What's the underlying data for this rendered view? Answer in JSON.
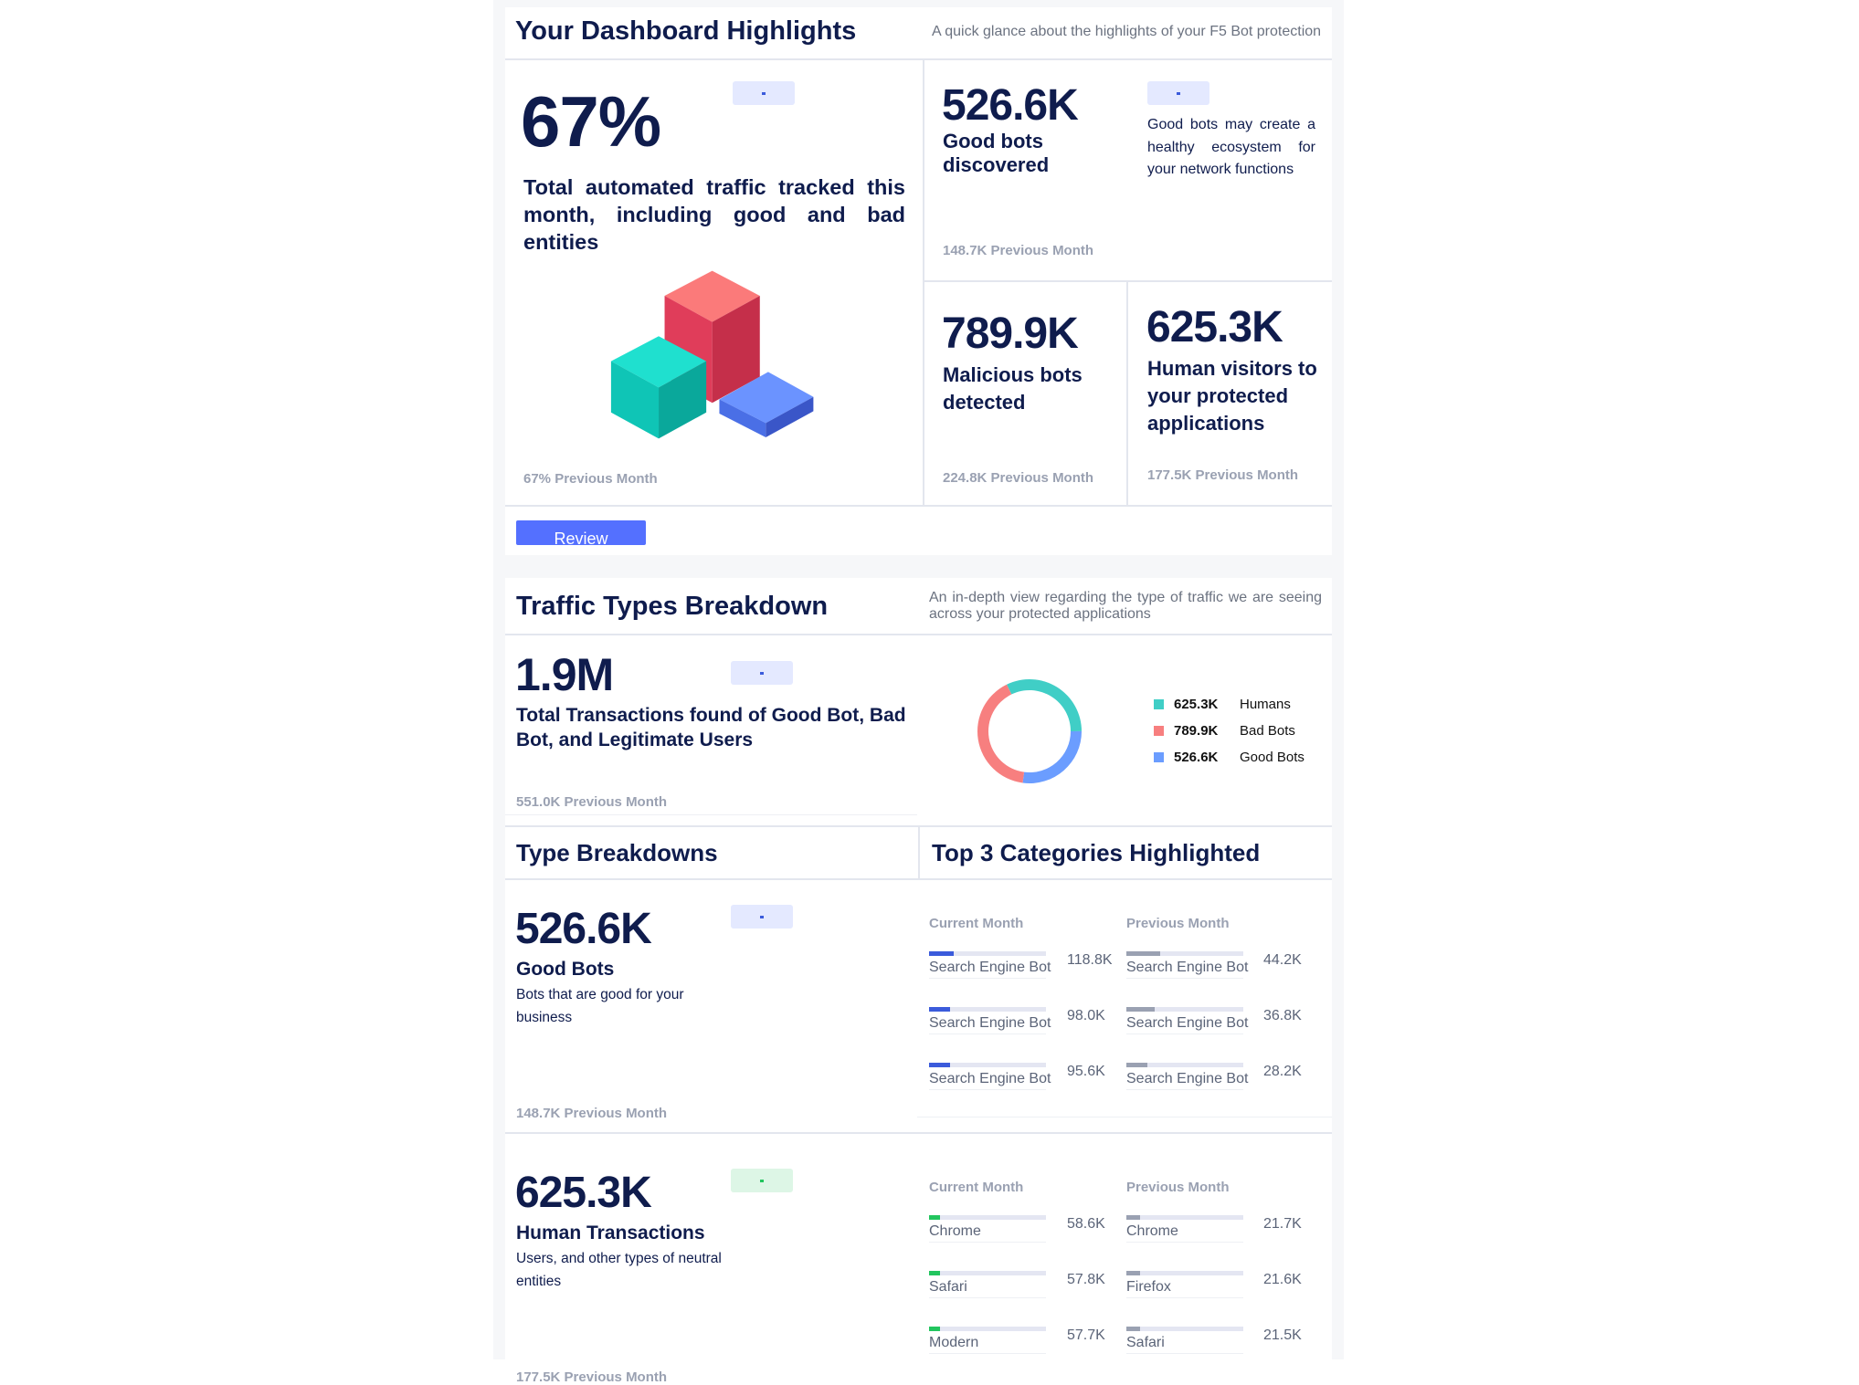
{
  "highlights": {
    "title": "Your Dashboard Highlights",
    "subtitle": "A quick glance about the highlights of your F5 Bot protection",
    "automated": {
      "value": "67%",
      "desc": "Total automated traffic tracked this month, including good and bad entities",
      "prev": "67% Previous Month"
    },
    "good_bots": {
      "value": "526.6K",
      "label": "Good bots discovered",
      "note": "Good bots may create a healthy ecosystem for your network functions",
      "prev": "148.7K Previous Month"
    },
    "malicious": {
      "value": "789.9K",
      "label": "Malicious bots detected",
      "prev": "224.8K Previous Month"
    },
    "humans": {
      "value": "625.3K",
      "label": "Human visitors to your protected applications",
      "prev": "177.5K Previous Month"
    },
    "review_label": "Review"
  },
  "traffic": {
    "title": "Traffic Types Breakdown",
    "subtitle": "An in-depth view regarding the type of traffic we are seeing across your protected applications",
    "total": {
      "value": "1.9M",
      "desc": "Total Transactions found of Good Bot, Bad Bot, and Legitimate Users",
      "prev": "551.0K Previous Month"
    },
    "legend": [
      {
        "value": "625.3K",
        "label": "Humans",
        "color": "#40cec6",
        "amount": 625.3
      },
      {
        "value": "789.9K",
        "label": "Bad Bots",
        "color": "#f77f7f",
        "amount": 789.9
      },
      {
        "value": "526.6K",
        "label": "Good Bots",
        "color": "#6b9dff",
        "amount": 526.6
      }
    ],
    "type_breakdowns_title": "Type Breakdowns",
    "top3_title": "Top 3 Categories Highlighted",
    "sections": [
      {
        "value": "526.6K",
        "label": "Good Bots",
        "desc": "Bots that are good for your business",
        "prev": "148.7K Previous Month",
        "badge": "blue",
        "accent": "#3b5bdb",
        "current_head": "Current Month",
        "previous_head": "Previous Month",
        "current": [
          {
            "name": "Search Engine Bot",
            "value": "118.8K",
            "fill": 0.21
          },
          {
            "name": "Search Engine Bot",
            "value": "98.0K",
            "fill": 0.18
          },
          {
            "name": "Search Engine Bot",
            "value": "95.6K",
            "fill": 0.18
          }
        ],
        "previous": [
          {
            "name": "Search Engine Bot",
            "value": "44.2K",
            "fill": 0.29
          },
          {
            "name": "Search Engine Bot",
            "value": "36.8K",
            "fill": 0.24
          },
          {
            "name": "Search Engine Bot",
            "value": "28.2K",
            "fill": 0.18
          }
        ]
      },
      {
        "value": "625.3K",
        "label": "Human Transactions",
        "desc": "Users, and other types of neutral entities",
        "prev": "177.5K Previous Month",
        "badge": "green",
        "accent": "#22c55e",
        "current_head": "Current Month",
        "previous_head": "Previous Month",
        "current": [
          {
            "name": "Chrome",
            "value": "58.6K",
            "fill": 0.09
          },
          {
            "name": "Safari",
            "value": "57.8K",
            "fill": 0.09
          },
          {
            "name": "Modern",
            "value": "57.7K",
            "fill": 0.09
          }
        ],
        "previous": [
          {
            "name": "Chrome",
            "value": "21.7K",
            "fill": 0.12
          },
          {
            "name": "Firefox",
            "value": "21.6K",
            "fill": 0.12
          },
          {
            "name": "Safari",
            "value": "21.5K",
            "fill": 0.12
          }
        ]
      }
    ]
  }
}
